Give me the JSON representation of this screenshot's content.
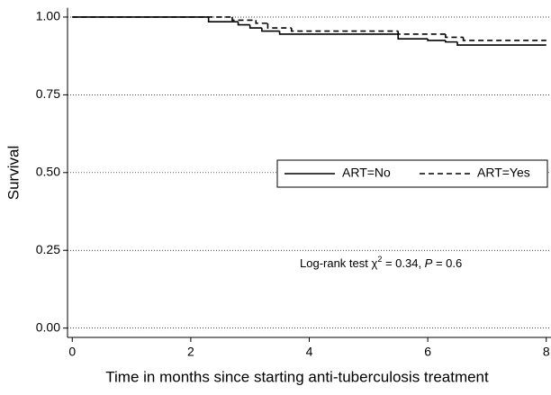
{
  "chart_data": {
    "type": "line",
    "step": "post",
    "xlabel": "Time in months since starting anti-tuberculosis treatment",
    "ylabel": "Survival",
    "xlim": [
      -0.08,
      8.08
    ],
    "ylim": [
      -0.03,
      1.03
    ],
    "xticks": [
      0,
      2,
      4,
      6,
      8
    ],
    "yticks": [
      {
        "value": 0,
        "label": "0.00"
      },
      {
        "value": 0.25,
        "label": "0.25"
      },
      {
        "value": 0.5,
        "label": "0.50"
      },
      {
        "value": 0.75,
        "label": "0.75"
      },
      {
        "value": 1,
        "label": "1.00"
      }
    ],
    "grid": true,
    "legend": "right",
    "series": [
      {
        "name": "ART=No",
        "color": "#000000",
        "dash": false,
        "x": [
          0,
          2.3,
          2.8,
          3.0,
          3.2,
          3.5,
          5.5,
          6.0,
          6.3,
          6.5,
          8
        ],
        "values": [
          1.0,
          0.985,
          0.975,
          0.965,
          0.955,
          0.945,
          0.93,
          0.925,
          0.92,
          0.91,
          0.91
        ]
      },
      {
        "name": "ART=Yes",
        "color": "#000000",
        "dash": true,
        "x": [
          0,
          2.7,
          3.1,
          3.3,
          3.7,
          5.5,
          6.3,
          6.6,
          8
        ],
        "values": [
          1.0,
          0.99,
          0.98,
          0.965,
          0.955,
          0.945,
          0.935,
          0.925,
          0.925
        ]
      }
    ],
    "annotation": [
      "Log-rank test χ",
      "2",
      " = 0.34, ",
      "P",
      " = 0.6"
    ]
  }
}
